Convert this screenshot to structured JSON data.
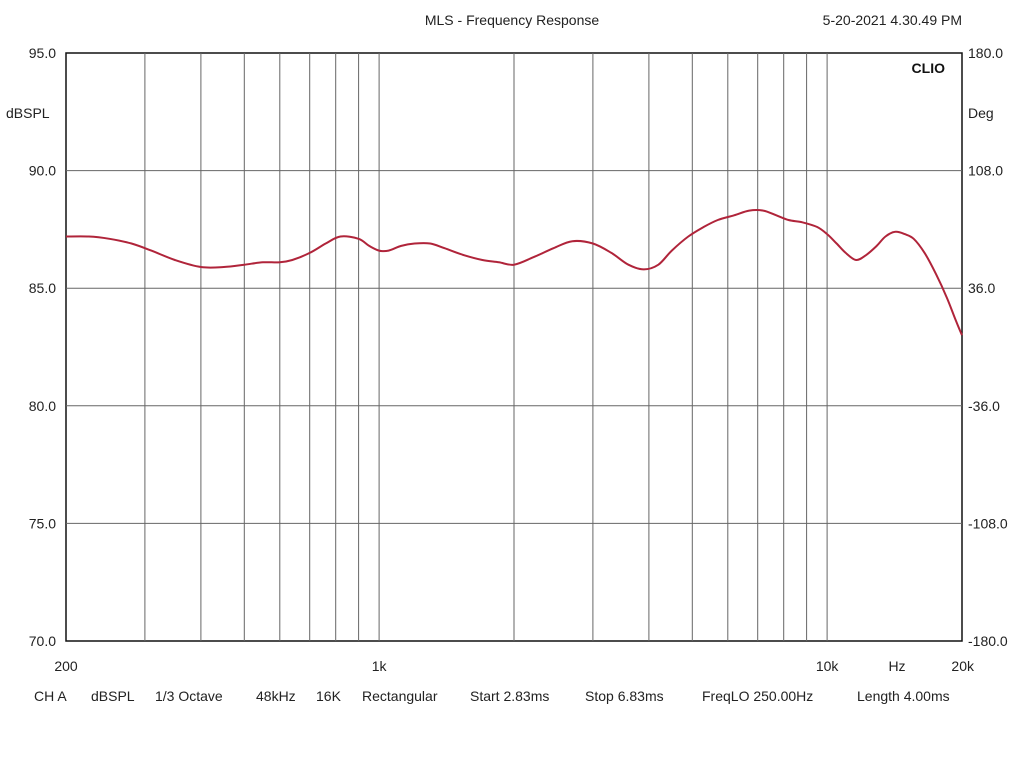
{
  "header": {
    "title": "MLS - Frequency Response",
    "timestamp": "5-20-2021 4.30.49 PM",
    "brand": "CLIO"
  },
  "chart_data": {
    "type": "line",
    "title": "MLS - Frequency Response",
    "x_scale": "log",
    "xlim": [
      200,
      20000
    ],
    "x_tick_labels": [
      {
        "value": 200,
        "label": "200"
      },
      {
        "value": 1000,
        "label": "1k"
      },
      {
        "value": 10000,
        "label": "10k"
      },
      {
        "value": 20000,
        "label": "20k"
      }
    ],
    "x_unit_label": "Hz",
    "x_gridlines": [
      300,
      400,
      500,
      600,
      700,
      800,
      900,
      1000,
      2000,
      3000,
      4000,
      5000,
      6000,
      7000,
      8000,
      9000,
      10000
    ],
    "ylabel": "dBSPL",
    "ylim": [
      70,
      95
    ],
    "y_ticks": [
      "95.0",
      "90.0",
      "85.0",
      "80.0",
      "75.0",
      "70.0"
    ],
    "y2label": "Deg",
    "y2lim": [
      -180,
      180
    ],
    "y2_ticks": [
      "180.0",
      "108.0",
      "36.0",
      "-36.0",
      "-108.0",
      "-180.0"
    ],
    "grid": true,
    "line_color": "#b0243a",
    "series": [
      {
        "x": [
          200,
          225,
          250,
          280,
          310,
          350,
          400,
          450,
          500,
          550,
          600,
          640,
          700,
          760,
          820,
          900,
          950,
          1000,
          1050,
          1120,
          1200,
          1300,
          1400,
          1550,
          1700,
          1850,
          2000,
          2200,
          2450,
          2700,
          3000,
          3300,
          3600,
          3900,
          4200,
          4500,
          4900,
          5300,
          5700,
          6200,
          6700,
          7200,
          7700,
          8200,
          8800,
          9500,
          10000,
          10500,
          11000,
          11600,
          12200,
          12900,
          13500,
          14200,
          14900,
          15600,
          16500,
          17500,
          18500,
          19400,
          20000
        ],
        "y": [
          87.2,
          87.2,
          87.1,
          86.9,
          86.6,
          86.2,
          85.9,
          85.9,
          86.0,
          86.1,
          86.1,
          86.2,
          86.5,
          86.9,
          87.2,
          87.1,
          86.8,
          86.6,
          86.6,
          86.8,
          86.9,
          86.9,
          86.7,
          86.4,
          86.2,
          86.1,
          86.0,
          86.3,
          86.7,
          87.0,
          86.9,
          86.5,
          86.0,
          85.8,
          86.0,
          86.6,
          87.2,
          87.6,
          87.9,
          88.1,
          88.3,
          88.3,
          88.1,
          87.9,
          87.8,
          87.6,
          87.3,
          86.9,
          86.5,
          86.2,
          86.4,
          86.8,
          87.2,
          87.4,
          87.3,
          87.1,
          86.5,
          85.6,
          84.6,
          83.6,
          83.0
        ]
      }
    ]
  },
  "footer": {
    "channel": "CH A",
    "unit": "dBSPL",
    "smoothing": "1/3 Octave",
    "sample_rate": "48kHz",
    "mls_size": "16K",
    "window": "Rectangular",
    "start": "Start 2.83ms",
    "stop": "Stop 6.83ms",
    "freq_lo": "FreqLO 250.00Hz",
    "length": "Length 4.00ms"
  }
}
